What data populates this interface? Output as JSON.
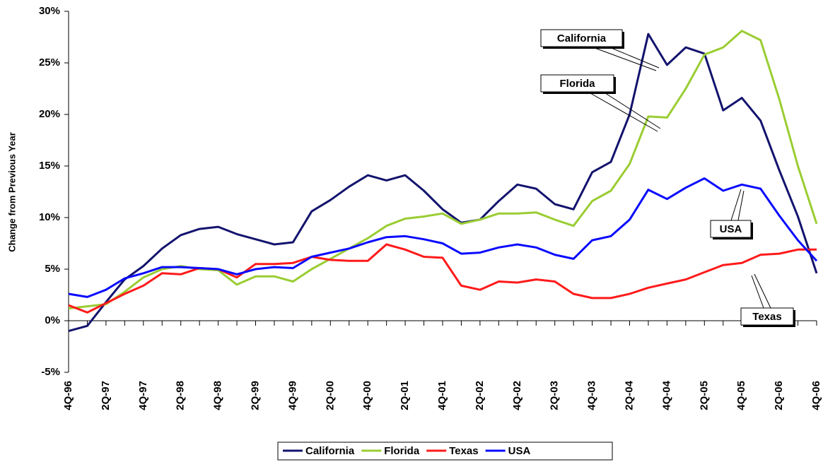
{
  "chart_data": {
    "type": "line",
    "y_label": "Change from Previous Year",
    "categories": [
      "4Q-96",
      null,
      "2Q-97",
      null,
      "4Q-97",
      null,
      "2Q-98",
      null,
      "4Q-98",
      null,
      "2Q-99",
      null,
      "4Q-99",
      null,
      "2Q-00",
      null,
      "4Q-00",
      null,
      "2Q-01",
      null,
      "4Q-01",
      null,
      "2Q-02",
      null,
      "4Q-02",
      null,
      "2Q-03",
      null,
      "4Q-03",
      null,
      "2Q-04",
      null,
      "4Q-04",
      null,
      "2Q-05",
      null,
      "4Q-05",
      null,
      "2Q-06",
      null,
      "4Q-06"
    ],
    "series": [
      {
        "name": "California",
        "color": "#13136e",
        "values": [
          -1.0,
          -0.5,
          1.8,
          4.0,
          5.3,
          7.0,
          8.3,
          8.9,
          9.1,
          8.4,
          7.9,
          7.4,
          7.6,
          10.6,
          11.7,
          13.0,
          14.1,
          13.6,
          14.1,
          12.6,
          10.8,
          9.5,
          9.8,
          11.6,
          13.2,
          12.8,
          11.3,
          10.8,
          14.4,
          15.4,
          20.0,
          27.8,
          24.8,
          26.5,
          25.9,
          20.4,
          21.6,
          19.4,
          14.6,
          10.1,
          4.6
        ]
      },
      {
        "name": "Florida",
        "color": "#9acd32",
        "values": [
          1.2,
          1.4,
          1.6,
          2.8,
          4.2,
          5.0,
          5.3,
          5.0,
          4.9,
          3.5,
          4.3,
          4.3,
          3.8,
          5.0,
          6.0,
          7.0,
          8.0,
          9.2,
          9.9,
          10.1,
          10.4,
          9.4,
          9.8,
          10.4,
          10.4,
          10.5,
          9.8,
          9.2,
          11.6,
          12.6,
          15.2,
          19.8,
          19.7,
          22.5,
          25.8,
          26.5,
          28.1,
          27.2,
          21.5,
          15.0,
          9.4
        ]
      },
      {
        "name": "Texas",
        "color": "#ff1a1a",
        "values": [
          1.5,
          0.8,
          1.7,
          2.6,
          3.4,
          4.6,
          4.5,
          5.1,
          5.0,
          4.2,
          5.5,
          5.5,
          5.6,
          6.2,
          5.9,
          5.8,
          5.8,
          7.4,
          6.9,
          6.2,
          6.1,
          3.4,
          3.0,
          3.8,
          3.7,
          4.0,
          3.8,
          2.6,
          2.2,
          2.2,
          2.6,
          3.2,
          3.6,
          4.0,
          4.7,
          5.4,
          5.6,
          6.4,
          6.5,
          6.9,
          6.9
        ]
      },
      {
        "name": "USA",
        "color": "#0a0aff",
        "values": [
          2.6,
          2.3,
          3.0,
          4.1,
          4.6,
          5.2,
          5.2,
          5.1,
          5.0,
          4.5,
          5.0,
          5.2,
          5.1,
          6.2,
          6.6,
          7.0,
          7.6,
          8.1,
          8.2,
          7.9,
          7.5,
          6.5,
          6.6,
          7.1,
          7.4,
          7.1,
          6.4,
          6.0,
          7.8,
          8.2,
          9.8,
          12.7,
          11.8,
          12.9,
          13.8,
          12.6,
          13.2,
          12.8,
          10.2,
          7.8,
          5.8
        ]
      }
    ],
    "ylim": [
      -5,
      30
    ],
    "yticks": [
      {
        "value": -5,
        "label": "-5%"
      },
      {
        "value": 0,
        "label": "0%"
      },
      {
        "value": 5,
        "label": "5%"
      },
      {
        "value": 10,
        "label": "10%"
      },
      {
        "value": 15,
        "label": "15%"
      },
      {
        "value": 20,
        "label": "20%"
      },
      {
        "value": 25,
        "label": "25%"
      },
      {
        "value": 30,
        "label": "30%"
      }
    ],
    "grid": false,
    "legend": "bottom",
    "annotations": [
      {
        "text": "California"
      },
      {
        "text": "Florida"
      },
      {
        "text": "USA"
      },
      {
        "text": "Texas"
      }
    ]
  }
}
